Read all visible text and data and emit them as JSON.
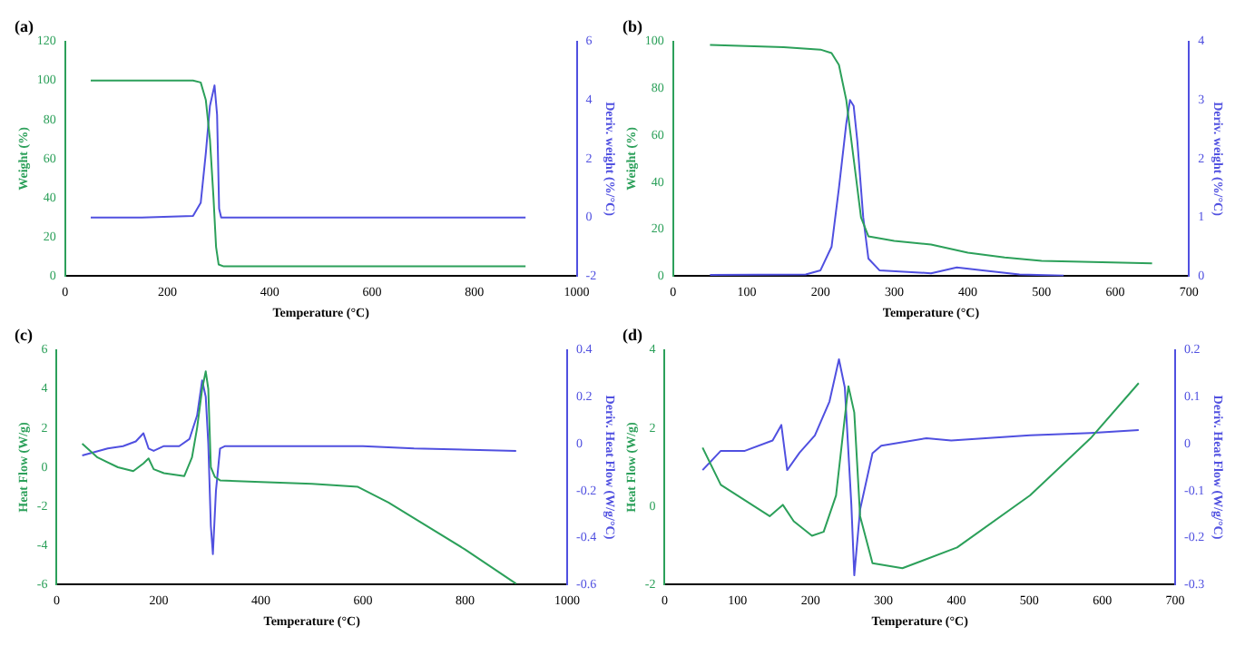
{
  "chart_data": [
    {
      "type": "line",
      "title": "(a)",
      "xlabel": "Temperature (°C)",
      "ylabel": "Weight (%)",
      "y2label": "Deriv. weight (%/°C)",
      "xlim": [
        0,
        1000
      ],
      "xticks": [
        0,
        200,
        400,
        600,
        800,
        1000
      ],
      "ylim": [
        0,
        120
      ],
      "yticks": [
        0,
        20,
        40,
        60,
        80,
        100,
        120
      ],
      "y2lim": [
        -2,
        6
      ],
      "y2ticks": [
        -2,
        0,
        2,
        4,
        6
      ],
      "grid": false,
      "legend": false,
      "series": [
        {
          "color": "#2ca05a",
          "x": [
            50,
            150,
            250,
            265,
            275,
            283,
            290,
            295,
            300,
            310,
            900
          ],
          "values": [
            100,
            100,
            100,
            99,
            90,
            70,
            40,
            15,
            6,
            5,
            5
          ]
        },
        {
          "color": "#5050e0",
          "axis": "y2",
          "x": [
            50,
            150,
            250,
            265,
            275,
            283,
            292,
            297,
            301,
            305,
            900
          ],
          "values": [
            0,
            0,
            0.05,
            0.5,
            2.2,
            3.8,
            4.5,
            3.5,
            0.3,
            0,
            0
          ]
        }
      ]
    },
    {
      "type": "line",
      "title": "(b)",
      "xlabel": "Temperature (°C)",
      "ylabel": "Weight (%)",
      "y2label": "Deriv. weight (%/°C)",
      "xlim": [
        0,
        700
      ],
      "xticks": [
        0,
        100,
        200,
        300,
        400,
        500,
        600,
        700
      ],
      "ylim": [
        0,
        100
      ],
      "yticks": [
        0,
        20,
        40,
        60,
        80,
        100
      ],
      "y2lim": [
        0,
        4
      ],
      "y2ticks": [
        0,
        1,
        2,
        3,
        4
      ],
      "grid": false,
      "legend": false,
      "series": [
        {
          "color": "#2ca05a",
          "x": [
            50,
            150,
            200,
            215,
            225,
            235,
            245,
            255,
            265,
            300,
            350,
            400,
            450,
            500,
            650
          ],
          "values": [
            98.5,
            97.5,
            96.5,
            95,
            90,
            75,
            50,
            25,
            17,
            15,
            13.5,
            10,
            8,
            6.5,
            5.5
          ]
        },
        {
          "color": "#5050e0",
          "axis": "y2",
          "x": [
            50,
            180,
            200,
            215,
            225,
            235,
            240,
            245,
            250,
            258,
            265,
            280,
            350,
            385,
            420,
            470,
            530
          ],
          "values": [
            0.02,
            0.03,
            0.1,
            0.5,
            1.5,
            2.6,
            3,
            2.9,
            2.3,
            1,
            0.3,
            0.1,
            0.05,
            0.15,
            0.1,
            0.03,
            0.01
          ]
        }
      ]
    },
    {
      "type": "line",
      "title": "(c)",
      "xlabel": "Temperature (°C)",
      "ylabel": "Heat Flow (W/g)",
      "y2label": "Deriv. Heat Flow (W/g/°C)",
      "xlim": [
        0,
        1000
      ],
      "xticks": [
        0,
        200,
        400,
        600,
        800,
        1000
      ],
      "ylim": [
        -6,
        6
      ],
      "yticks": [
        -6,
        -4,
        -2,
        0,
        2,
        4,
        6
      ],
      "y2lim": [
        -0.6,
        0.4
      ],
      "y2ticks": [
        -0.6,
        -0.4,
        -0.2,
        0.0,
        0.2,
        0.4
      ],
      "grid": false,
      "legend": false,
      "series": [
        {
          "color": "#2ca05a",
          "x": [
            50,
            80,
            120,
            150,
            170,
            180,
            190,
            210,
            250,
            265,
            275,
            285,
            292,
            297,
            302,
            310,
            320,
            400,
            500,
            590,
            650,
            700,
            800,
            900
          ],
          "values": [
            1.2,
            0.5,
            0,
            -0.2,
            0.2,
            0.45,
            -0.1,
            -0.3,
            -0.45,
            0.5,
            2,
            4,
            4.9,
            4,
            0,
            -0.5,
            -0.67,
            -0.75,
            -0.85,
            -1,
            -1.8,
            -2.6,
            -4.2,
            -5.95
          ]
        },
        {
          "color": "#5050e0",
          "axis": "y2",
          "x": [
            50,
            100,
            130,
            155,
            170,
            180,
            190,
            210,
            240,
            260,
            275,
            285,
            292,
            297,
            302,
            306,
            312,
            320,
            330,
            600,
            700,
            900
          ],
          "values": [
            -0.05,
            -0.02,
            -0.01,
            0.01,
            0.045,
            -0.02,
            -0.03,
            -0.01,
            -0.01,
            0.02,
            0.12,
            0.27,
            0.2,
            0,
            -0.35,
            -0.47,
            -0.2,
            -0.02,
            -0.01,
            -0.01,
            -0.02,
            -0.03
          ]
        }
      ]
    },
    {
      "type": "line",
      "title": "(d)",
      "xlabel": "Temperature (°C)",
      "ylabel": "Heat Flow (W/g)",
      "y2label": "Deriv. Heat Flow (W/g/°C)",
      "xlim": [
        0,
        700
      ],
      "xticks": [
        0,
        100,
        200,
        300,
        400,
        500,
        600,
        700
      ],
      "ylim": [
        -2,
        4
      ],
      "yticks": [
        -2,
        0,
        2,
        4
      ],
      "y2lim": [
        -0.3,
        0.2
      ],
      "y2ticks": [
        -0.3,
        -0.2,
        -0.1,
        0.0,
        0.1,
        0.2
      ],
      "grid": false,
      "legend": false,
      "series": [
        {
          "color": "#2ca05a",
          "x": [
            52,
            77,
            144,
            162,
            177,
            202,
            218,
            235,
            247,
            252,
            260,
            268,
            285,
            326,
            401,
            501,
            584,
            650
          ],
          "values": [
            1.5,
            0.55,
            -0.25,
            0.04,
            -0.38,
            -0.75,
            -0.65,
            0.28,
            2.27,
            3.07,
            2.4,
            -0.25,
            -1.45,
            -1.58,
            -1.05,
            0.28,
            1.74,
            3.15
          ]
        },
        {
          "color": "#5050e0",
          "axis": "y2",
          "x": [
            52,
            77,
            110,
            148,
            160,
            168,
            185,
            206,
            226,
            239,
            247,
            256,
            260,
            268,
            285,
            297,
            359,
            393,
            501,
            584,
            650
          ],
          "values": [
            -0.056,
            -0.015,
            -0.015,
            0.007,
            0.04,
            -0.056,
            -0.019,
            0.018,
            0.09,
            0.18,
            0.12,
            -0.13,
            -0.28,
            -0.14,
            -0.02,
            -0.004,
            0.012,
            0.007,
            0.018,
            0.023,
            0.029
          ]
        }
      ]
    }
  ]
}
